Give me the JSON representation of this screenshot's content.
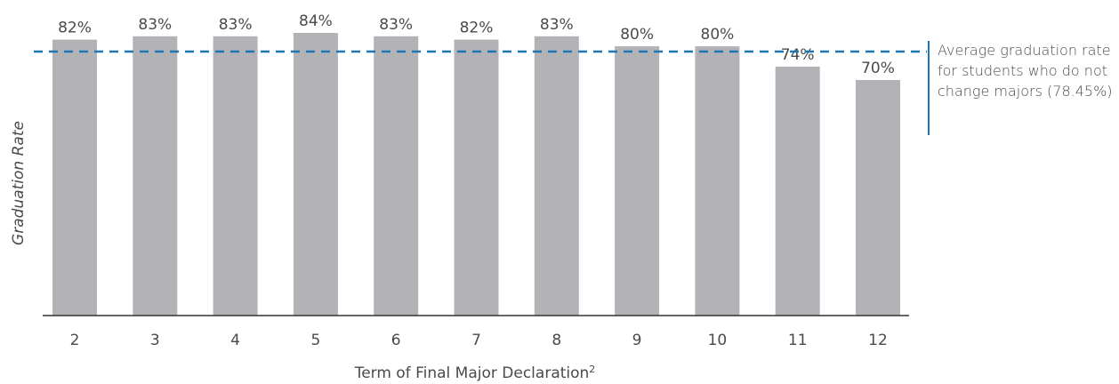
{
  "chart_data": {
    "type": "bar",
    "categories": [
      "2",
      "3",
      "4",
      "5",
      "6",
      "7",
      "8",
      "9",
      "10",
      "11",
      "12"
    ],
    "values": [
      82,
      83,
      83,
      84,
      83,
      82,
      83,
      80,
      80,
      74,
      70
    ],
    "value_labels": [
      "82%",
      "83%",
      "83%",
      "84%",
      "83%",
      "82%",
      "83%",
      "80%",
      "80%",
      "74%",
      "70%"
    ],
    "xlabel": "Term of Final Major Declaration",
    "xlabel_superscript": "2",
    "ylabel": "Graduation Rate",
    "ylim": [
      0,
      84
    ],
    "grid": false,
    "reference_line": {
      "value": 78.45,
      "label": "Average graduation rate for students who do not change majors (78.45%)",
      "color": "#1f76b5",
      "style": "dashed"
    },
    "bar_color": "#b3b2b7"
  }
}
